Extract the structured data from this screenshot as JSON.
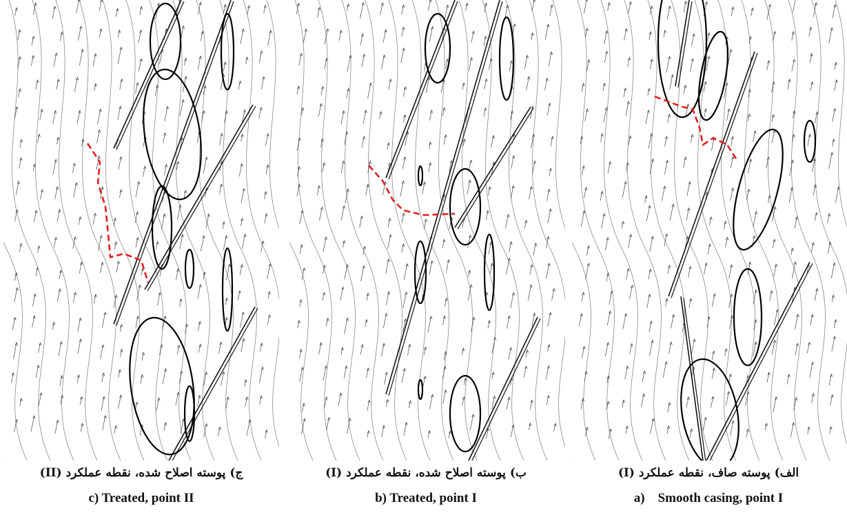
{
  "panels": [
    {
      "caption_fa": "ج) پوسته اصلاح شده، نقطه عملکرد (II)",
      "caption_en": "c) Treated, point II"
    },
    {
      "caption_fa": "ب) پوسته اصلاح شده، نقطه عملکرد (I)",
      "caption_en": "b) Treated, point I"
    },
    {
      "caption_fa": "الف) پوسته صاف، نقطه عملکرد (I)",
      "caption_en": "a)    Smooth casing, point I"
    }
  ]
}
